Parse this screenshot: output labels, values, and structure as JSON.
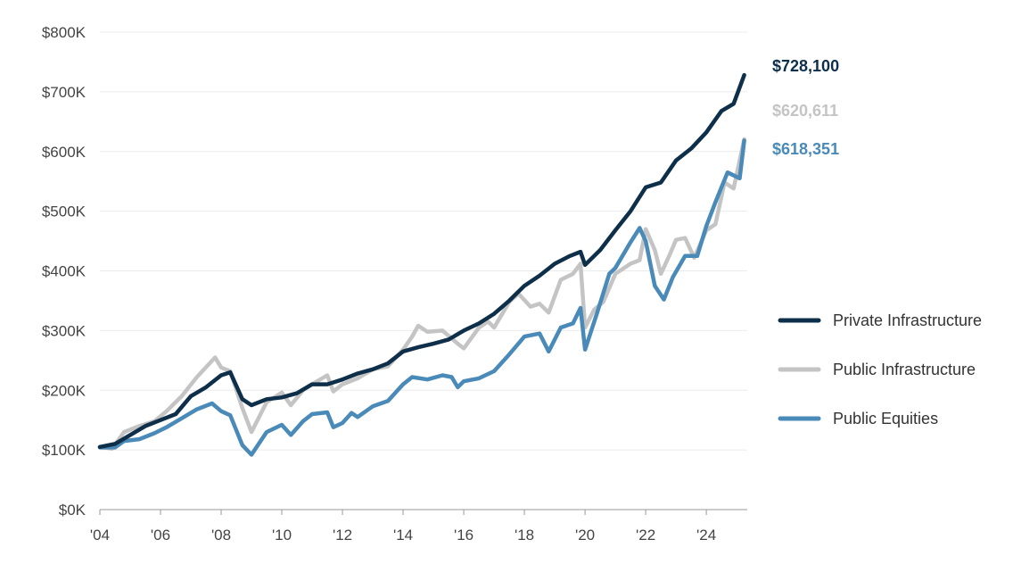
{
  "chart_data": {
    "type": "line",
    "title": "",
    "xlabel": "",
    "ylabel": "",
    "xlim": [
      2004.0,
      2025.35
    ],
    "ylim": [
      0,
      800000
    ],
    "y_ticks": [
      0,
      100000,
      200000,
      300000,
      400000,
      500000,
      600000,
      700000,
      800000
    ],
    "y_tick_labels": [
      "$0K",
      "$100K",
      "$200K",
      "$300K",
      "$400K",
      "$500K",
      "$600K",
      "$700K",
      "$800K"
    ],
    "x_ticks": [
      2004,
      2006,
      2008,
      2010,
      2012,
      2014,
      2016,
      2018,
      2020,
      2022,
      2024
    ],
    "x_tick_labels": [
      "'04",
      "'06",
      "'08",
      "'10",
      "'12",
      "'14",
      "'16",
      "'18",
      "'20",
      "'22",
      "'24"
    ],
    "grid": "horizontal",
    "legend_position": "right",
    "series": [
      {
        "name": "Private Infrastructure",
        "color": "#0e2f4a",
        "end_label": "$728,100",
        "points": [
          [
            2004.0,
            105000
          ],
          [
            2004.5,
            110000
          ],
          [
            2005.0,
            125000
          ],
          [
            2005.5,
            140000
          ],
          [
            2006.0,
            150000
          ],
          [
            2006.5,
            160000
          ],
          [
            2007.0,
            190000
          ],
          [
            2007.5,
            205000
          ],
          [
            2008.0,
            225000
          ],
          [
            2008.3,
            230000
          ],
          [
            2008.7,
            185000
          ],
          [
            2009.0,
            175000
          ],
          [
            2009.5,
            185000
          ],
          [
            2010.0,
            188000
          ],
          [
            2010.5,
            195000
          ],
          [
            2011.0,
            210000
          ],
          [
            2011.5,
            210000
          ],
          [
            2012.0,
            218000
          ],
          [
            2012.5,
            228000
          ],
          [
            2013.0,
            235000
          ],
          [
            2013.5,
            245000
          ],
          [
            2014.0,
            265000
          ],
          [
            2014.5,
            272000
          ],
          [
            2015.0,
            278000
          ],
          [
            2015.5,
            285000
          ],
          [
            2016.0,
            300000
          ],
          [
            2016.5,
            312000
          ],
          [
            2017.0,
            328000
          ],
          [
            2017.5,
            350000
          ],
          [
            2018.0,
            375000
          ],
          [
            2018.5,
            392000
          ],
          [
            2019.0,
            412000
          ],
          [
            2019.5,
            425000
          ],
          [
            2019.85,
            432000
          ],
          [
            2020.0,
            410000
          ],
          [
            2020.5,
            435000
          ],
          [
            2021.0,
            468000
          ],
          [
            2021.5,
            500000
          ],
          [
            2022.0,
            540000
          ],
          [
            2022.5,
            548000
          ],
          [
            2023.0,
            585000
          ],
          [
            2023.5,
            605000
          ],
          [
            2024.0,
            632000
          ],
          [
            2024.5,
            668000
          ],
          [
            2024.9,
            680000
          ],
          [
            2025.25,
            728100
          ]
        ]
      },
      {
        "name": "Public Infrastructure",
        "color": "#c4c4c4",
        "end_label": "$620,611",
        "points": [
          [
            2004.0,
            105000
          ],
          [
            2004.4,
            102000
          ],
          [
            2004.8,
            130000
          ],
          [
            2005.3,
            140000
          ],
          [
            2005.8,
            148000
          ],
          [
            2006.2,
            165000
          ],
          [
            2006.7,
            190000
          ],
          [
            2007.2,
            222000
          ],
          [
            2007.8,
            255000
          ],
          [
            2008.0,
            238000
          ],
          [
            2008.3,
            232000
          ],
          [
            2008.7,
            170000
          ],
          [
            2009.0,
            130000
          ],
          [
            2009.5,
            180000
          ],
          [
            2010.0,
            196000
          ],
          [
            2010.3,
            175000
          ],
          [
            2010.7,
            200000
          ],
          [
            2011.0,
            210000
          ],
          [
            2011.5,
            225000
          ],
          [
            2011.7,
            198000
          ],
          [
            2012.0,
            210000
          ],
          [
            2012.5,
            220000
          ],
          [
            2013.0,
            235000
          ],
          [
            2013.5,
            240000
          ],
          [
            2014.0,
            268000
          ],
          [
            2014.3,
            290000
          ],
          [
            2014.5,
            308000
          ],
          [
            2014.8,
            298000
          ],
          [
            2015.3,
            300000
          ],
          [
            2015.8,
            278000
          ],
          [
            2016.0,
            270000
          ],
          [
            2016.5,
            305000
          ],
          [
            2016.8,
            315000
          ],
          [
            2017.0,
            305000
          ],
          [
            2017.5,
            348000
          ],
          [
            2017.8,
            362000
          ],
          [
            2018.2,
            340000
          ],
          [
            2018.5,
            345000
          ],
          [
            2018.8,
            330000
          ],
          [
            2019.2,
            385000
          ],
          [
            2019.6,
            395000
          ],
          [
            2019.85,
            412000
          ],
          [
            2020.0,
            305000
          ],
          [
            2020.3,
            335000
          ],
          [
            2020.6,
            348000
          ],
          [
            2021.0,
            395000
          ],
          [
            2021.5,
            412000
          ],
          [
            2021.8,
            418000
          ],
          [
            2022.0,
            470000
          ],
          [
            2022.3,
            435000
          ],
          [
            2022.5,
            395000
          ],
          [
            2022.8,
            428000
          ],
          [
            2023.0,
            452000
          ],
          [
            2023.3,
            455000
          ],
          [
            2023.6,
            422000
          ],
          [
            2024.0,
            468000
          ],
          [
            2024.3,
            478000
          ],
          [
            2024.6,
            548000
          ],
          [
            2024.9,
            538000
          ],
          [
            2025.25,
            620611
          ]
        ]
      },
      {
        "name": "Public Equities",
        "color": "#4a8ab8",
        "end_label": "$618,351",
        "points": [
          [
            2004.0,
            104000
          ],
          [
            2004.5,
            104000
          ],
          [
            2004.8,
            115000
          ],
          [
            2005.3,
            118000
          ],
          [
            2005.8,
            128000
          ],
          [
            2006.2,
            138000
          ],
          [
            2006.7,
            153000
          ],
          [
            2007.2,
            168000
          ],
          [
            2007.7,
            178000
          ],
          [
            2008.0,
            165000
          ],
          [
            2008.3,
            158000
          ],
          [
            2008.7,
            108000
          ],
          [
            2009.0,
            92000
          ],
          [
            2009.5,
            130000
          ],
          [
            2010.0,
            142000
          ],
          [
            2010.3,
            125000
          ],
          [
            2010.7,
            148000
          ],
          [
            2011.0,
            160000
          ],
          [
            2011.5,
            163000
          ],
          [
            2011.7,
            138000
          ],
          [
            2012.0,
            145000
          ],
          [
            2012.3,
            162000
          ],
          [
            2012.5,
            155000
          ],
          [
            2013.0,
            173000
          ],
          [
            2013.5,
            182000
          ],
          [
            2014.0,
            210000
          ],
          [
            2014.3,
            222000
          ],
          [
            2014.8,
            218000
          ],
          [
            2015.3,
            225000
          ],
          [
            2015.6,
            222000
          ],
          [
            2015.8,
            205000
          ],
          [
            2016.0,
            215000
          ],
          [
            2016.5,
            220000
          ],
          [
            2017.0,
            232000
          ],
          [
            2017.5,
            260000
          ],
          [
            2018.0,
            290000
          ],
          [
            2018.5,
            295000
          ],
          [
            2018.8,
            265000
          ],
          [
            2019.2,
            305000
          ],
          [
            2019.6,
            312000
          ],
          [
            2019.85,
            338000
          ],
          [
            2020.0,
            268000
          ],
          [
            2020.4,
            330000
          ],
          [
            2020.8,
            395000
          ],
          [
            2021.0,
            405000
          ],
          [
            2021.5,
            448000
          ],
          [
            2021.8,
            472000
          ],
          [
            2022.0,
            450000
          ],
          [
            2022.3,
            375000
          ],
          [
            2022.6,
            352000
          ],
          [
            2022.9,
            390000
          ],
          [
            2023.3,
            425000
          ],
          [
            2023.7,
            425000
          ],
          [
            2024.0,
            475000
          ],
          [
            2024.3,
            515000
          ],
          [
            2024.7,
            565000
          ],
          [
            2025.1,
            555000
          ],
          [
            2025.25,
            618351
          ]
        ]
      }
    ]
  }
}
